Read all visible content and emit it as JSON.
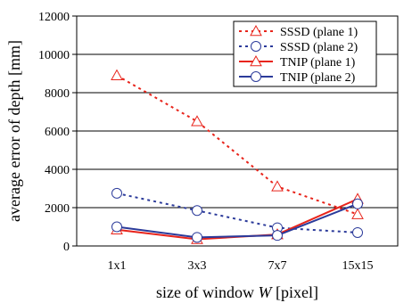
{
  "chart_data": {
    "type": "line",
    "categories": [
      "1x1",
      "3x3",
      "7x7",
      "15x15"
    ],
    "ylabel": "average error of depth [mm]",
    "xlabel_parts": {
      "before": "size of window ",
      "var": "W",
      "after": " [pixel]"
    },
    "ylim": [
      0,
      12000
    ],
    "yticks": [
      0,
      2000,
      4000,
      6000,
      8000,
      10000,
      12000
    ],
    "grid": "horizontal",
    "legend_position": "top-right",
    "series": [
      {
        "name": "SSSD (plane 1)",
        "values": [
          8900,
          6500,
          3100,
          1650
        ],
        "color": "#e8241b",
        "dash": "dotted",
        "marker": "triangle"
      },
      {
        "name": "SSSD (plane 2)",
        "values": [
          2750,
          1850,
          950,
          700
        ],
        "color": "#2b3a9a",
        "dash": "dotted",
        "marker": "circle"
      },
      {
        "name": "TNIP (plane 1)",
        "values": [
          850,
          350,
          600,
          2450
        ],
        "color": "#e8241b",
        "dash": "solid",
        "marker": "triangle"
      },
      {
        "name": "TNIP (plane 2)",
        "values": [
          1000,
          450,
          550,
          2200
        ],
        "color": "#2b3a9a",
        "dash": "solid",
        "marker": "circle"
      }
    ]
  }
}
